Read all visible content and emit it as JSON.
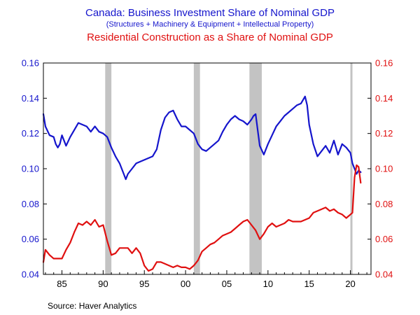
{
  "chart_data": {
    "type": "line",
    "title": "Canada: Business Investment Share of Nominal GDP",
    "subtitle": "(Structures + Machinery & Equipment + Intellectual Property)",
    "title2": "Residential Construction as a Share of Nominal GDP",
    "source": "Source:  Haver Analytics",
    "xlim": [
      1982.75,
      2022.5
    ],
    "ylim_left": [
      0.04,
      0.16
    ],
    "ylim_right": [
      0.04,
      0.16
    ],
    "yticks_left": [
      "0.04",
      "0.06",
      "0.08",
      "0.10",
      "0.12",
      "0.14",
      "0.16"
    ],
    "yticks_right": [
      "0.04",
      "0.06",
      "0.08",
      "0.10",
      "0.12",
      "0.14",
      "0.16"
    ],
    "xticks": [
      {
        "label": "85",
        "value": 1985
      },
      {
        "label": "90",
        "value": 1990
      },
      {
        "label": "95",
        "value": 1995
      },
      {
        "label": "00",
        "value": 2000
      },
      {
        "label": "05",
        "value": 2005
      },
      {
        "label": "10",
        "value": 2010
      },
      {
        "label": "15",
        "value": 2015
      },
      {
        "label": "20",
        "value": 2020
      }
    ],
    "recessions": [
      [
        1990.25,
        1991.0
      ],
      [
        2001.0,
        2001.75
      ],
      [
        2007.75,
        2009.25
      ],
      [
        2020.0,
        2020.25
      ]
    ],
    "colors": {
      "business": "#1515cc",
      "residential": "#e01010",
      "left_axis": "#1515cc",
      "right_axis": "#e01010",
      "recession": "#c3c3c3",
      "frame": "#000000"
    },
    "series": [
      {
        "name": "Business Investment Share of Nominal GDP",
        "axis": "left",
        "x": [
          1982.75,
          1983.0,
          1983.5,
          1984.0,
          1984.25,
          1984.5,
          1984.75,
          1985.0,
          1985.5,
          1986.0,
          1986.5,
          1987.0,
          1987.5,
          1988.0,
          1988.5,
          1989.0,
          1989.5,
          1990.0,
          1990.5,
          1991.0,
          1991.5,
          1992.0,
          1992.5,
          1992.75,
          1993.0,
          1993.5,
          1994.0,
          1994.5,
          1995.0,
          1995.5,
          1996.0,
          1996.5,
          1997.0,
          1997.5,
          1998.0,
          1998.5,
          1999.0,
          1999.5,
          2000.0,
          2000.5,
          2001.0,
          2001.5,
          2002.0,
          2002.5,
          2003.0,
          2003.5,
          2004.0,
          2004.5,
          2005.0,
          2005.5,
          2006.0,
          2006.5,
          2007.0,
          2007.5,
          2008.0,
          2008.25,
          2008.5,
          2008.75,
          2009.0,
          2009.5,
          2010.0,
          2010.5,
          2011.0,
          2011.5,
          2012.0,
          2012.5,
          2013.0,
          2013.5,
          2014.0,
          2014.25,
          2014.5,
          2014.75,
          2015.0,
          2015.5,
          2016.0,
          2016.5,
          2017.0,
          2017.5,
          2018.0,
          2018.5,
          2019.0,
          2019.5,
          2020.0,
          2020.25,
          2020.5,
          2020.75,
          2021.0,
          2021.25
        ],
        "values": [
          0.131,
          0.124,
          0.119,
          0.118,
          0.114,
          0.112,
          0.114,
          0.119,
          0.113,
          0.118,
          0.122,
          0.126,
          0.125,
          0.124,
          0.121,
          0.124,
          0.121,
          0.12,
          0.118,
          0.112,
          0.107,
          0.103,
          0.097,
          0.094,
          0.097,
          0.1,
          0.103,
          0.104,
          0.105,
          0.106,
          0.107,
          0.111,
          0.122,
          0.129,
          0.132,
          0.133,
          0.128,
          0.124,
          0.124,
          0.122,
          0.12,
          0.114,
          0.111,
          0.11,
          0.112,
          0.114,
          0.116,
          0.121,
          0.125,
          0.128,
          0.13,
          0.128,
          0.127,
          0.125,
          0.128,
          0.13,
          0.131,
          0.122,
          0.113,
          0.108,
          0.114,
          0.119,
          0.124,
          0.127,
          0.13,
          0.132,
          0.134,
          0.136,
          0.137,
          0.139,
          0.141,
          0.136,
          0.125,
          0.114,
          0.107,
          0.11,
          0.113,
          0.109,
          0.116,
          0.108,
          0.114,
          0.112,
          0.109,
          0.103,
          0.1,
          0.097,
          0.099,
          0.098
        ]
      },
      {
        "name": "Residential Construction as a Share of Nominal GDP",
        "axis": "right",
        "x": [
          1982.75,
          1983.0,
          1983.5,
          1984.0,
          1984.5,
          1985.0,
          1985.5,
          1986.0,
          1986.5,
          1987.0,
          1987.5,
          1988.0,
          1988.5,
          1989.0,
          1989.5,
          1990.0,
          1990.5,
          1991.0,
          1991.5,
          1992.0,
          1992.5,
          1993.0,
          1993.5,
          1994.0,
          1994.5,
          1995.0,
          1995.5,
          1996.0,
          1996.5,
          1997.0,
          1997.5,
          1998.0,
          1998.5,
          1999.0,
          1999.5,
          2000.0,
          2000.5,
          2001.0,
          2001.5,
          2002.0,
          2002.5,
          2003.0,
          2003.5,
          2004.0,
          2004.5,
          2005.0,
          2005.5,
          2006.0,
          2006.5,
          2007.0,
          2007.5,
          2008.0,
          2008.5,
          2009.0,
          2009.5,
          2010.0,
          2010.5,
          2011.0,
          2011.5,
          2012.0,
          2012.5,
          2013.0,
          2013.5,
          2014.0,
          2014.5,
          2015.0,
          2015.5,
          2016.0,
          2016.5,
          2017.0,
          2017.5,
          2018.0,
          2018.5,
          2019.0,
          2019.5,
          2020.0,
          2020.25,
          2020.5,
          2020.75,
          2021.0,
          2021.25
        ],
        "values": [
          0.047,
          0.054,
          0.051,
          0.049,
          0.049,
          0.049,
          0.054,
          0.058,
          0.064,
          0.069,
          0.068,
          0.07,
          0.068,
          0.071,
          0.067,
          0.068,
          0.059,
          0.051,
          0.052,
          0.055,
          0.055,
          0.055,
          0.052,
          0.055,
          0.052,
          0.045,
          0.042,
          0.043,
          0.047,
          0.047,
          0.046,
          0.045,
          0.044,
          0.045,
          0.044,
          0.044,
          0.043,
          0.045,
          0.048,
          0.053,
          0.055,
          0.057,
          0.058,
          0.06,
          0.062,
          0.063,
          0.064,
          0.066,
          0.068,
          0.07,
          0.071,
          0.068,
          0.065,
          0.06,
          0.063,
          0.067,
          0.069,
          0.067,
          0.068,
          0.069,
          0.071,
          0.07,
          0.07,
          0.07,
          0.071,
          0.072,
          0.075,
          0.076,
          0.077,
          0.078,
          0.076,
          0.077,
          0.075,
          0.074,
          0.072,
          0.074,
          0.075,
          0.095,
          0.102,
          0.101,
          0.092
        ]
      }
    ]
  }
}
